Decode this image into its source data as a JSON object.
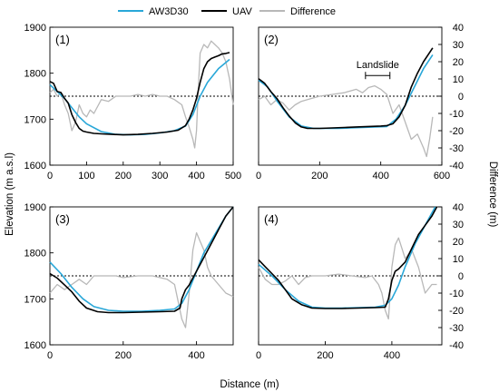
{
  "legend": {
    "entries": [
      {
        "label": "AW3D30",
        "color": "#29a7d8"
      },
      {
        "label": "UAV",
        "color": "#000000"
      },
      {
        "label": "Difference",
        "color": "#b8b8b8"
      }
    ],
    "placement": "top-center"
  },
  "axes": {
    "left_label": "Elevation (m a.s.l)",
    "right_label": "Difference (m)",
    "bottom_label": "Distance (m)"
  },
  "annotation": {
    "text": "Landslide"
  },
  "chart_data": [
    {
      "type": "line",
      "panel_label": "(1)",
      "xlim": [
        0,
        500
      ],
      "xticks": [
        0,
        100,
        200,
        300,
        400,
        500
      ],
      "ylim_left": [
        1600,
        1900
      ],
      "yticks_left": [
        1600,
        1700,
        1800,
        1900
      ],
      "ylim_right": [
        -40,
        40
      ],
      "zero_line": true,
      "series": [
        {
          "name": "AW3D30",
          "axis": "left",
          "x": [
            0,
            20,
            40,
            60,
            80,
            100,
            140,
            180,
            220,
            260,
            300,
            340,
            370,
            390,
            410,
            430,
            460,
            490
          ],
          "y": [
            1775,
            1760,
            1745,
            1725,
            1705,
            1690,
            1673,
            1667,
            1666,
            1667,
            1670,
            1675,
            1685,
            1710,
            1750,
            1780,
            1810,
            1830
          ]
        },
        {
          "name": "UAV",
          "axis": "left",
          "x": [
            0,
            10,
            20,
            30,
            40,
            50,
            60,
            70,
            80,
            90,
            100,
            120,
            140,
            170,
            200,
            240,
            280,
            320,
            350,
            370,
            380,
            390,
            400,
            410,
            420,
            430,
            440,
            450,
            460,
            470,
            480,
            490
          ],
          "y": [
            1782,
            1778,
            1760,
            1758,
            1745,
            1735,
            1710,
            1693,
            1680,
            1674,
            1672,
            1669,
            1668,
            1667,
            1666,
            1667,
            1669,
            1672,
            1676,
            1686,
            1700,
            1720,
            1745,
            1780,
            1810,
            1825,
            1832,
            1835,
            1838,
            1842,
            1843,
            1845
          ]
        },
        {
          "name": "Difference",
          "axis": "right",
          "x": [
            0,
            10,
            20,
            30,
            40,
            50,
            60,
            70,
            80,
            90,
            100,
            110,
            120,
            140,
            160,
            180,
            200,
            220,
            240,
            260,
            280,
            300,
            320,
            340,
            360,
            370,
            380,
            390,
            395,
            400,
            405,
            410,
            420,
            430,
            440,
            450,
            460,
            470,
            480,
            490,
            500
          ],
          "y": [
            2,
            4,
            0,
            2,
            -5,
            -10,
            -20,
            -15,
            -5,
            -10,
            -12,
            -8,
            -10,
            -2,
            -3,
            0,
            0,
            0,
            1,
            0,
            1,
            0,
            0,
            -2,
            -5,
            -12,
            -18,
            -25,
            -30,
            -20,
            5,
            25,
            30,
            28,
            32,
            30,
            28,
            25,
            20,
            10,
            -5
          ]
        }
      ]
    },
    {
      "type": "line",
      "panel_label": "(2)",
      "xlim": [
        0,
        600
      ],
      "xticks": [
        0,
        200,
        400,
        600
      ],
      "ylim_left": [
        1600,
        1900
      ],
      "ylim_right": [
        -40,
        40
      ],
      "yticks_right": [
        -40,
        -30,
        -20,
        -10,
        0,
        10,
        20,
        30,
        40
      ],
      "zero_line": true,
      "annotation": {
        "label": "Landslide",
        "x_range": [
          350,
          430
        ],
        "y": 12
      },
      "series": [
        {
          "name": "AW3D30",
          "axis": "left",
          "x": [
            0,
            30,
            60,
            100,
            140,
            180,
            220,
            260,
            300,
            340,
            380,
            420,
            450,
            480,
            510,
            540,
            570
          ],
          "y": [
            1785,
            1770,
            1740,
            1705,
            1685,
            1680,
            1680,
            1680,
            1681,
            1682,
            1683,
            1684,
            1700,
            1730,
            1770,
            1810,
            1840
          ]
        },
        {
          "name": "UAV",
          "axis": "left",
          "x": [
            0,
            20,
            40,
            60,
            80,
            100,
            120,
            140,
            160,
            200,
            240,
            280,
            320,
            360,
            400,
            420,
            440,
            460,
            480,
            500,
            520,
            540,
            560,
            570
          ],
          "y": [
            1788,
            1778,
            1760,
            1745,
            1725,
            1707,
            1692,
            1683,
            1680,
            1680,
            1681,
            1682,
            1683,
            1684,
            1685,
            1686,
            1690,
            1705,
            1730,
            1770,
            1800,
            1825,
            1845,
            1855
          ]
        },
        {
          "name": "Difference",
          "axis": "right",
          "x": [
            0,
            20,
            40,
            60,
            80,
            100,
            120,
            140,
            160,
            180,
            200,
            240,
            280,
            320,
            340,
            360,
            380,
            400,
            420,
            440,
            460,
            480,
            500,
            520,
            540,
            550,
            560,
            570
          ],
          "y": [
            -2,
            0,
            -5,
            -2,
            -4,
            -8,
            -5,
            -3,
            -2,
            -1,
            0,
            1,
            2,
            4,
            2,
            5,
            6,
            4,
            1,
            -10,
            -5,
            -15,
            -25,
            -22,
            -30,
            -35,
            -25,
            -12
          ]
        }
      ]
    },
    {
      "type": "line",
      "panel_label": "(3)",
      "xlim": [
        0,
        500
      ],
      "xticks": [
        0,
        200,
        400
      ],
      "ylim_left": [
        1600,
        1900
      ],
      "yticks_left": [
        1600,
        1700,
        1800,
        1900
      ],
      "ylim_right": [
        -40,
        40
      ],
      "zero_line": true,
      "series": [
        {
          "name": "AW3D30",
          "axis": "left",
          "x": [
            0,
            30,
            60,
            90,
            120,
            160,
            200,
            250,
            300,
            340,
            360,
            380,
            400,
            420,
            450,
            480,
            500
          ],
          "y": [
            1780,
            1755,
            1725,
            1700,
            1683,
            1675,
            1673,
            1673,
            1675,
            1678,
            1690,
            1720,
            1760,
            1800,
            1840,
            1880,
            1900
          ]
        },
        {
          "name": "UAV",
          "axis": "left",
          "x": [
            0,
            20,
            40,
            60,
            80,
            100,
            130,
            160,
            200,
            250,
            300,
            340,
            355,
            360,
            370,
            380,
            400,
            420,
            440,
            460,
            480,
            500
          ],
          "y": [
            1755,
            1745,
            1730,
            1715,
            1695,
            1680,
            1672,
            1670,
            1670,
            1671,
            1672,
            1673,
            1680,
            1700,
            1720,
            1730,
            1760,
            1790,
            1820,
            1850,
            1880,
            1900
          ]
        },
        {
          "name": "Difference",
          "axis": "right",
          "x": [
            0,
            20,
            40,
            60,
            80,
            100,
            120,
            140,
            160,
            180,
            200,
            240,
            280,
            320,
            340,
            350,
            360,
            370,
            380,
            390,
            400,
            410,
            420,
            430,
            440,
            460,
            480,
            500
          ],
          "y": [
            -10,
            -5,
            -8,
            -5,
            -2,
            -5,
            0,
            0,
            0,
            0,
            -1,
            0,
            0,
            -2,
            -5,
            -15,
            -25,
            -30,
            -10,
            15,
            25,
            20,
            15,
            5,
            0,
            -5,
            -10,
            -12
          ]
        }
      ]
    },
    {
      "type": "line",
      "panel_label": "(4)",
      "xlim": [
        0,
        550
      ],
      "xticks": [
        0,
        200,
        400
      ],
      "ylim_left": [
        1600,
        1900
      ],
      "ylim_right": [
        -40,
        40
      ],
      "yticks_right": [
        -40,
        -30,
        -20,
        -10,
        0,
        10,
        20,
        30,
        40
      ],
      "zero_line": true,
      "series": [
        {
          "name": "AW3D30",
          "axis": "left",
          "x": [
            0,
            40,
            80,
            120,
            160,
            200,
            250,
            300,
            350,
            380,
            400,
            420,
            440,
            470,
            500,
            530
          ],
          "y": [
            1775,
            1750,
            1720,
            1695,
            1682,
            1680,
            1680,
            1681,
            1682,
            1686,
            1700,
            1730,
            1770,
            1820,
            1860,
            1900
          ]
        },
        {
          "name": "UAV",
          "axis": "left",
          "x": [
            0,
            20,
            40,
            60,
            80,
            100,
            130,
            160,
            200,
            250,
            300,
            350,
            380,
            390,
            400,
            410,
            420,
            440,
            460,
            480,
            500,
            520,
            535
          ],
          "y": [
            1785,
            1770,
            1755,
            1740,
            1720,
            1700,
            1687,
            1680,
            1679,
            1679,
            1680,
            1681,
            1682,
            1700,
            1740,
            1760,
            1765,
            1780,
            1810,
            1840,
            1860,
            1880,
            1900
          ]
        },
        {
          "name": "Difference",
          "axis": "right",
          "x": [
            0,
            20,
            40,
            60,
            80,
            100,
            120,
            140,
            160,
            200,
            240,
            280,
            320,
            340,
            360,
            370,
            380,
            390,
            400,
            410,
            420,
            440,
            460,
            480,
            500,
            520,
            535
          ],
          "y": [
            5,
            -2,
            -5,
            -5,
            -3,
            0,
            -5,
            -1,
            0,
            0,
            1,
            0,
            -1,
            0,
            -5,
            -10,
            -20,
            -25,
            5,
            18,
            22,
            10,
            15,
            5,
            -10,
            -5,
            -5
          ]
        }
      ]
    }
  ]
}
